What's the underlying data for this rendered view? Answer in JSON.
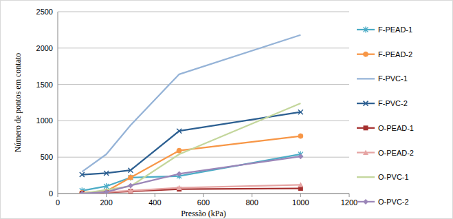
{
  "chart_data": {
    "type": "line",
    "x_label": "Pressão (kPa)",
    "y_label": "Número de pontos em contato",
    "x": [
      100,
      200,
      300,
      500,
      1000
    ],
    "xlim": [
      0,
      1200
    ],
    "xticks": [
      0,
      200,
      400,
      600,
      800,
      1000,
      1200
    ],
    "ylim": [
      0,
      2500
    ],
    "yticks": [
      0,
      500,
      1000,
      1500,
      2000,
      2500
    ],
    "grid": true,
    "legend": "right",
    "series": [
      {
        "name": "F-PEAD-1",
        "color": "#4bacc6",
        "marker": "star",
        "values": [
          40,
          100,
          220,
          240,
          540
        ]
      },
      {
        "name": "F-PEAD-2",
        "color": "#f79646",
        "marker": "circle",
        "values": [
          10,
          30,
          220,
          590,
          790
        ]
      },
      {
        "name": "F-PVC-1",
        "color": "#95b3d7",
        "marker": "none",
        "values": [
          300,
          540,
          940,
          1640,
          2180
        ]
      },
      {
        "name": "F-PVC-2",
        "color": "#2c5f91",
        "marker": "x",
        "values": [
          260,
          280,
          320,
          860,
          1120
        ]
      },
      {
        "name": "O-PEAD-1",
        "color": "#a5302f",
        "marker": "square",
        "values": [
          5,
          15,
          30,
          60,
          70
        ]
      },
      {
        "name": "O-PEAD-2",
        "color": "#e6a5a4",
        "marker": "triangle",
        "values": [
          5,
          20,
          40,
          80,
          120
        ]
      },
      {
        "name": "O-PVC-1",
        "color": "#c3d69b",
        "marker": "none",
        "values": [
          0,
          50,
          100,
          540,
          1240
        ]
      },
      {
        "name": "O-PVC-2",
        "color": "#9b86b8",
        "marker": "diamond",
        "values": [
          0,
          20,
          110,
          270,
          510
        ]
      }
    ]
  }
}
